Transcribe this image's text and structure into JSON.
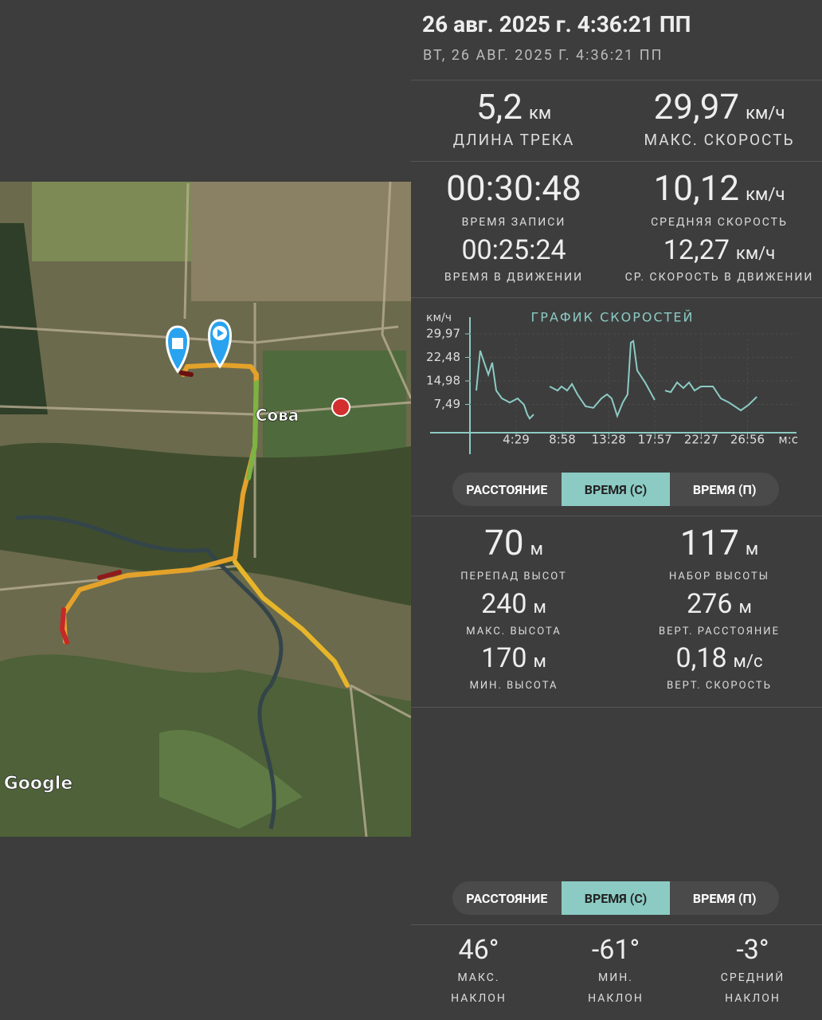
{
  "header": {
    "title": "26 авг. 2025 г. 4:36:21 ПП",
    "subtitle": "ВТ, 26 АВГ. 2025 Г. 4:36:21 ПП"
  },
  "map": {
    "place_label": "Сова",
    "attribution": "Google"
  },
  "track_stats": [
    {
      "value": "5,2",
      "unit": "км",
      "label": "ДЛИНА ТРЕКА"
    },
    {
      "value": "29,97",
      "unit": "км/ч",
      "label": "МАКС. СКОРОСТЬ"
    },
    {
      "value": "00:30:48",
      "label": "ВРЕМЯ ЗАПИСИ"
    },
    {
      "value": "10,12",
      "unit": "км/ч",
      "label": "СРЕДНЯЯ СКОРОСТЬ"
    },
    {
      "value": "00:25:24",
      "label": "ВРЕМЯ В ДВИЖЕНИИ"
    },
    {
      "value": "12,27",
      "unit": "км/ч",
      "label": "СР. СКОРОСТЬ В ДВИЖЕНИИ"
    }
  ],
  "chart_data": {
    "type": "line",
    "title": "ГРАФИК СКОРОСТЕЙ",
    "y_label": "км/ч",
    "x_label": "м:с",
    "color": "#8ccbc4",
    "x": [
      37,
      60,
      83,
      107,
      130,
      153,
      186,
      232,
      278,
      315,
      334,
      348,
      371,
      420,
      464,
      510,
      533,
      566,
      594,
      626,
      673,
      719,
      765,
      798,
      825,
      858,
      890,
      918,
      937,
      951,
      974,
      1020,
      1076,
      1100,
      1136,
      1169,
      1206,
      1243,
      1276,
      1308,
      1345,
      1415,
      1461,
      1508,
      1577,
      1623,
      1670
    ],
    "values": [
      11.9,
      24.6,
      20.8,
      17,
      20.8,
      11.9,
      9.4,
      8.1,
      9.4,
      7.4,
      4.3,
      3,
      4.3,
      null,
      13.2,
      11.9,
      13.2,
      11.9,
      14,
      10.7,
      6.9,
      6.4,
      9.4,
      10.7,
      9.4,
      3.8,
      8.1,
      10.7,
      27.2,
      27.7,
      18.3,
      14.5,
      8.9,
      null,
      11.9,
      11.4,
      14.5,
      12.7,
      14.5,
      11.9,
      13.2,
      13.2,
      9.4,
      8.1,
      5.6,
      7.4,
      9.9
    ],
    "xlim": [
      0,
      1900
    ],
    "ylim": [
      0,
      32
    ],
    "xticks": [
      {
        "value": 269,
        "label": "4:29"
      },
      {
        "value": 538,
        "label": "8:58"
      },
      {
        "value": 808,
        "label": "13:28"
      },
      {
        "value": 1077,
        "label": "17:57"
      },
      {
        "value": 1347,
        "label": "22:27"
      },
      {
        "value": 1616,
        "label": "26:56"
      }
    ],
    "yticks": [
      {
        "value": 7.49,
        "label": "7,49"
      },
      {
        "value": 14.98,
        "label": "14,98"
      },
      {
        "value": 22.48,
        "label": "22,48"
      },
      {
        "value": 29.97,
        "label": "29,97"
      }
    ],
    "grid": true
  },
  "tabs_top": {
    "items": [
      "РАССТОЯНИЕ",
      "ВРЕМЯ (С)",
      "ВРЕМЯ (П)"
    ],
    "selected": 1
  },
  "elevation_stats": [
    {
      "value": "70",
      "unit": "м",
      "label": "ПЕРЕПАД ВЫСОТ"
    },
    {
      "value": "117",
      "unit": "м",
      "label": "НАБОР ВЫСОТЫ"
    },
    {
      "value": "240",
      "unit": "м",
      "label": "МАКС. ВЫСОТА"
    },
    {
      "value": "276",
      "unit": "м",
      "label": "ВЕРТ. РАССТОЯНИЕ"
    },
    {
      "value": "170",
      "unit": "м",
      "label": "МИН. ВЫСОТА"
    },
    {
      "value": "0,18",
      "unit": "м/с",
      "label": "ВЕРТ. СКОРОСТЬ"
    }
  ],
  "tabs_bottom": {
    "items": [
      "РАССТОЯНИЕ",
      "ВРЕМЯ (С)",
      "ВРЕМЯ (П)"
    ],
    "selected": 1
  },
  "slope_stats": [
    {
      "value": "46°",
      "label": "МАКС. НАКЛОН"
    },
    {
      "value": "-61°",
      "label": "МИН. НАКЛОН"
    },
    {
      "value": "-3°",
      "label": "СРЕДНИЙ НАКЛОН"
    }
  ]
}
